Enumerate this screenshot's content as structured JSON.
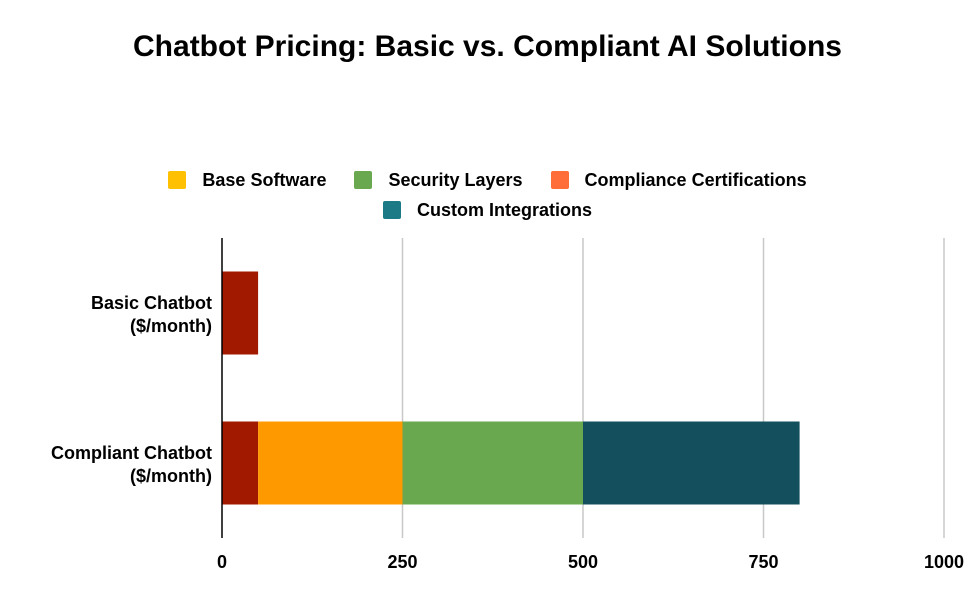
{
  "chart_data": {
    "type": "bar",
    "orientation": "horizontal",
    "stacked": true,
    "title": "Chatbot Pricing: Basic vs. Compliant AI Solutions",
    "categories": [
      "Basic Chatbot ($/month)",
      "Compliant Chatbot ($/month)"
    ],
    "category_lines": [
      [
        "Basic Chatbot",
        "($/month)"
      ],
      [
        "Compliant Chatbot",
        "($/month)"
      ]
    ],
    "series": [
      {
        "name": "Base Software",
        "color": "#a11a00",
        "values": [
          50,
          50
        ]
      },
      {
        "name": "Security Layers",
        "color": "#ff9900",
        "values": [
          0,
          200
        ]
      },
      {
        "name": "Compliance Certifications",
        "color": "#6aa84f",
        "values": [
          0,
          250
        ]
      },
      {
        "name": "Custom Integrations",
        "color": "#134f5c",
        "values": [
          0,
          300
        ]
      }
    ],
    "legend": [
      {
        "name": "Base Software",
        "color": "#ffc000"
      },
      {
        "name": "Security Layers",
        "color": "#6aa84f"
      },
      {
        "name": "Compliance Certifications",
        "color": "#ff6d38"
      },
      {
        "name": "Custom Integrations",
        "color": "#1c7a87"
      }
    ],
    "legend_placement": "top",
    "xlim": [
      0,
      1000
    ],
    "xticks": [
      0,
      250,
      500,
      750,
      1000
    ],
    "grid": true,
    "xlabel": "",
    "ylabel": ""
  }
}
